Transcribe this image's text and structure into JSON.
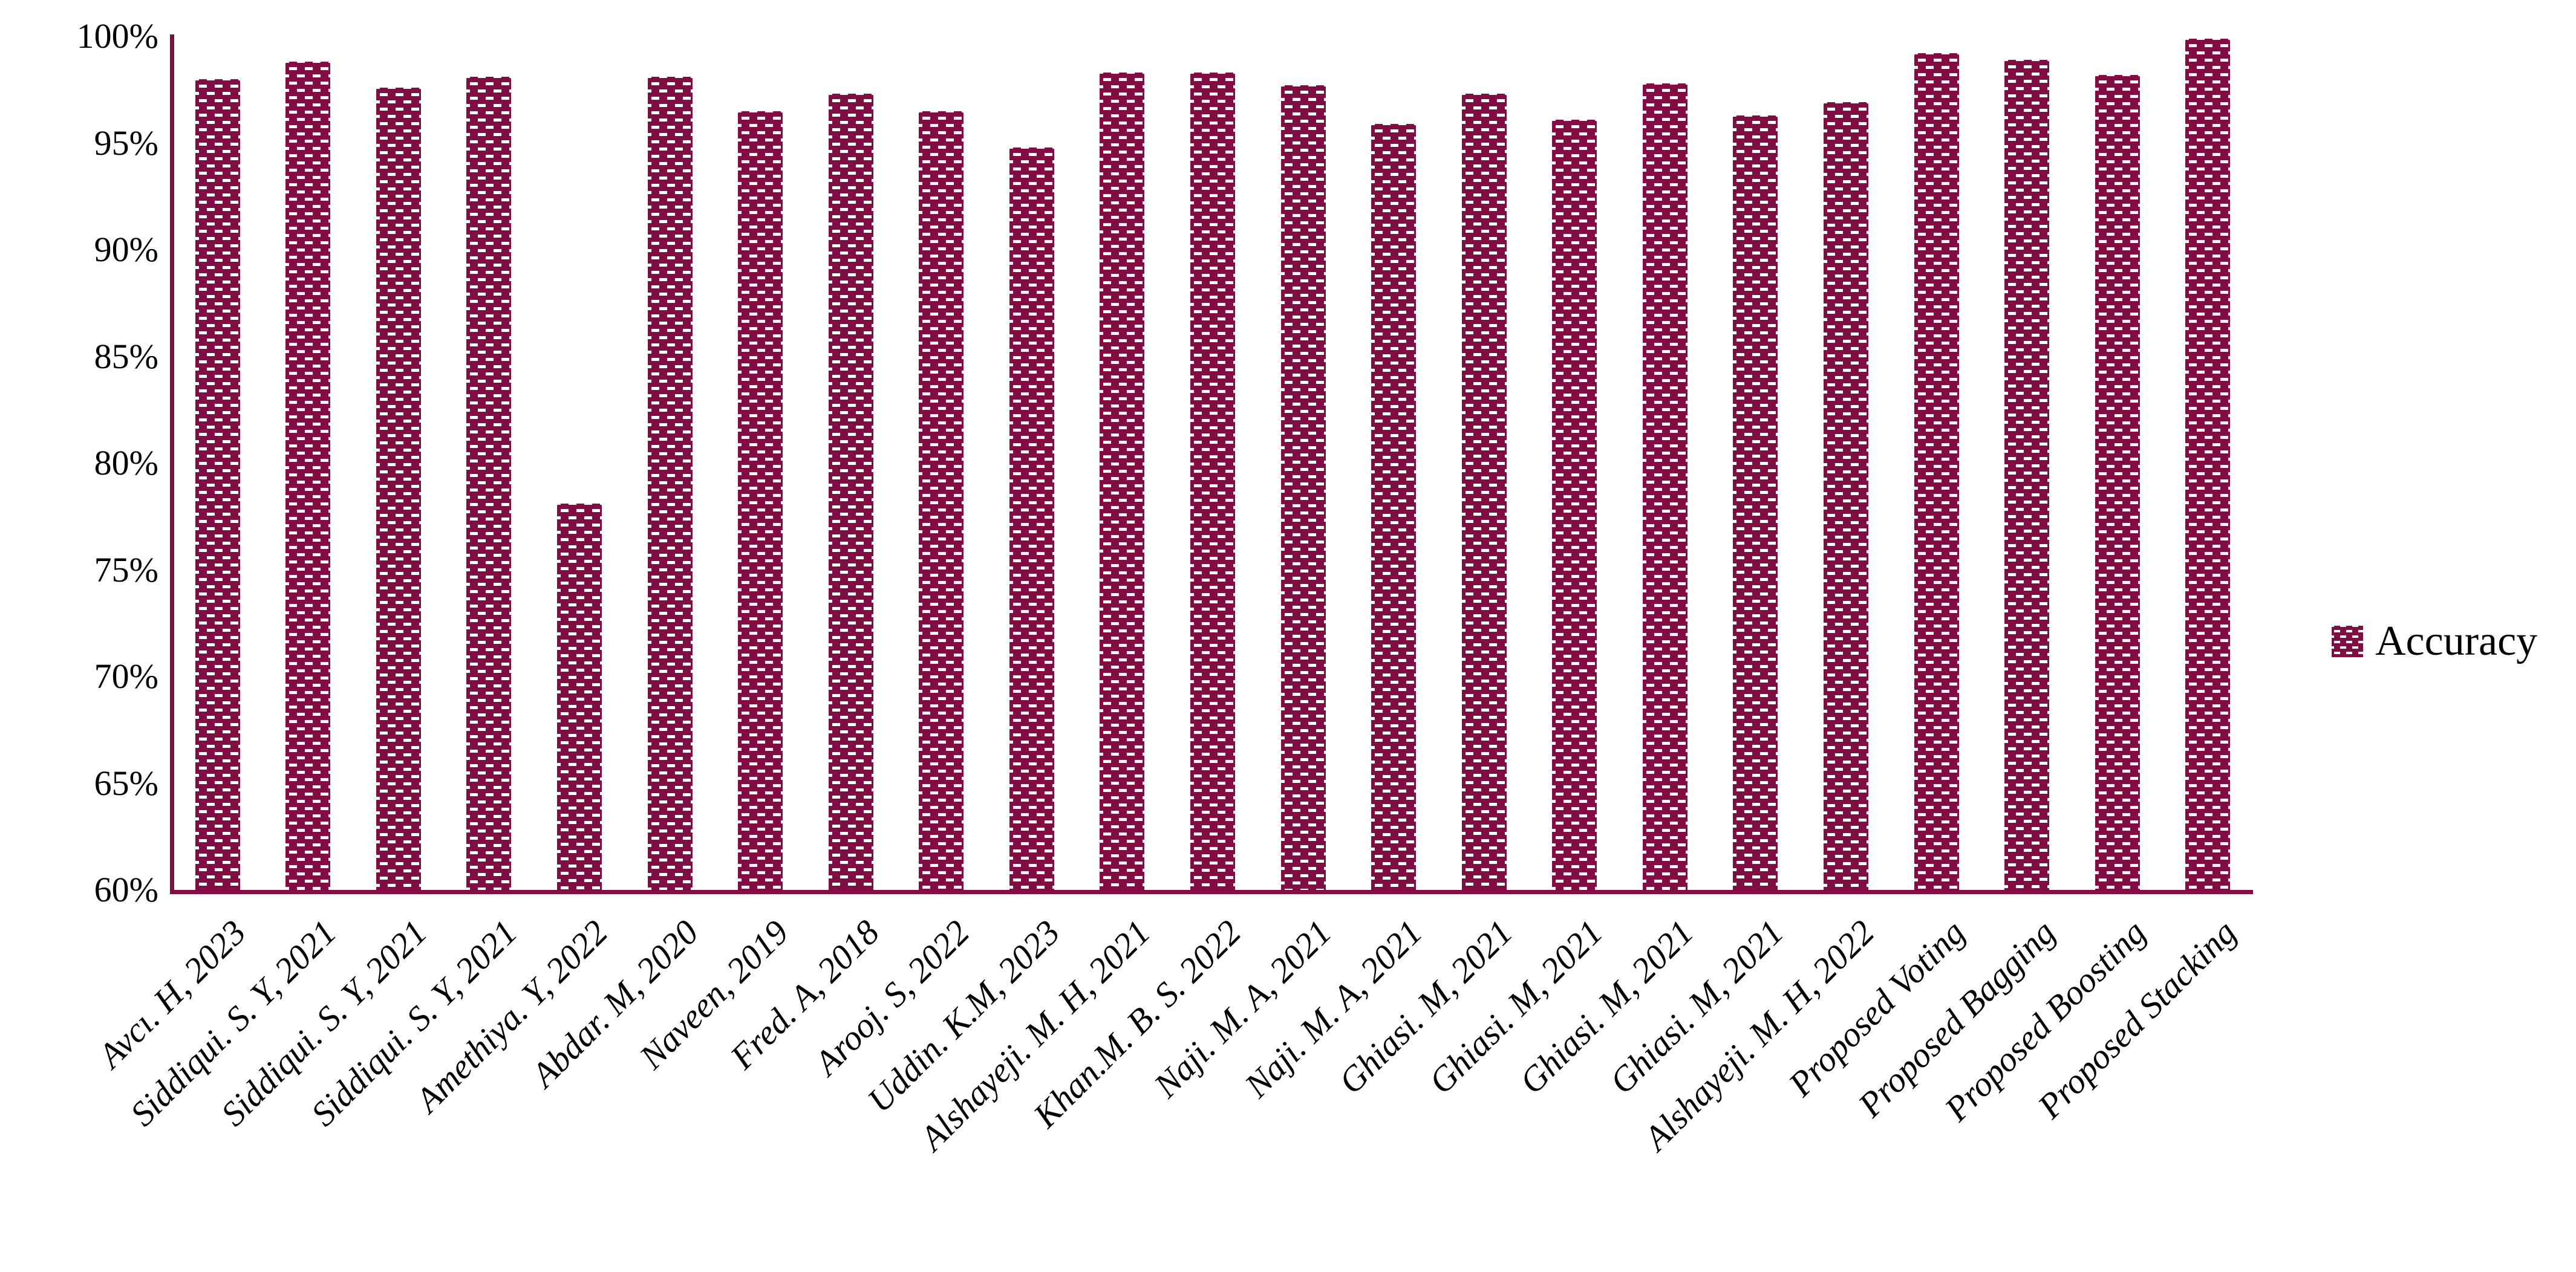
{
  "legend": {
    "label": "Accuracy"
  },
  "colors": {
    "bar_fill": "#820D45",
    "bar_pattern": "#ffffff",
    "axis": "#820D45",
    "text": "#000000",
    "background": "#ffffff"
  },
  "chart_data": {
    "type": "bar",
    "title": "",
    "xlabel": "",
    "ylabel": "",
    "ylim": [
      60,
      100
    ],
    "ytick_step": 5,
    "ytick_labels": [
      "100%",
      "95%",
      "90%",
      "85%",
      "80%",
      "75%",
      "70%",
      "65%",
      "60%"
    ],
    "grid": false,
    "legend_entries": [
      "Accuracy"
    ],
    "legend_position": "right",
    "x_label_rotation_deg": 45,
    "categories": [
      "Avcı. H, 2023",
      "Siddiqui. S. Y, 2021",
      "Siddiqui. S. Y, 2021",
      "Siddiqui. S. Y, 2021",
      "Amethiya. Y, 2022",
      "Abdar. M, 2020",
      "Naveen, 2019",
      "Fred. A, 2018",
      "Arooj. S, 2022",
      "Uddin. K.M, 2023",
      "Alshayeji. M. H, 2021",
      "Khan.M. B. S. 2022",
      "Naji. M. A, 2021",
      "Naji. M. A, 2021",
      "Ghiasi. M, 2021",
      "Ghiasi. M, 2021",
      "Ghiasi. M, 2021",
      "Ghiasi. M, 2021",
      "Alshayeji. M. H, 2022",
      "Proposed Voting",
      "Proposed Bagging",
      "Proposed Boosting",
      "Proposed Stacking"
    ],
    "series": [
      {
        "name": "Accuracy",
        "unit": "%",
        "values": [
          98.0,
          98.8,
          97.6,
          98.1,
          78.1,
          98.1,
          96.5,
          97.3,
          96.5,
          94.8,
          98.3,
          98.3,
          97.7,
          95.9,
          97.3,
          96.1,
          97.8,
          96.3,
          96.9,
          99.2,
          98.9,
          98.2,
          99.9
        ]
      }
    ]
  }
}
